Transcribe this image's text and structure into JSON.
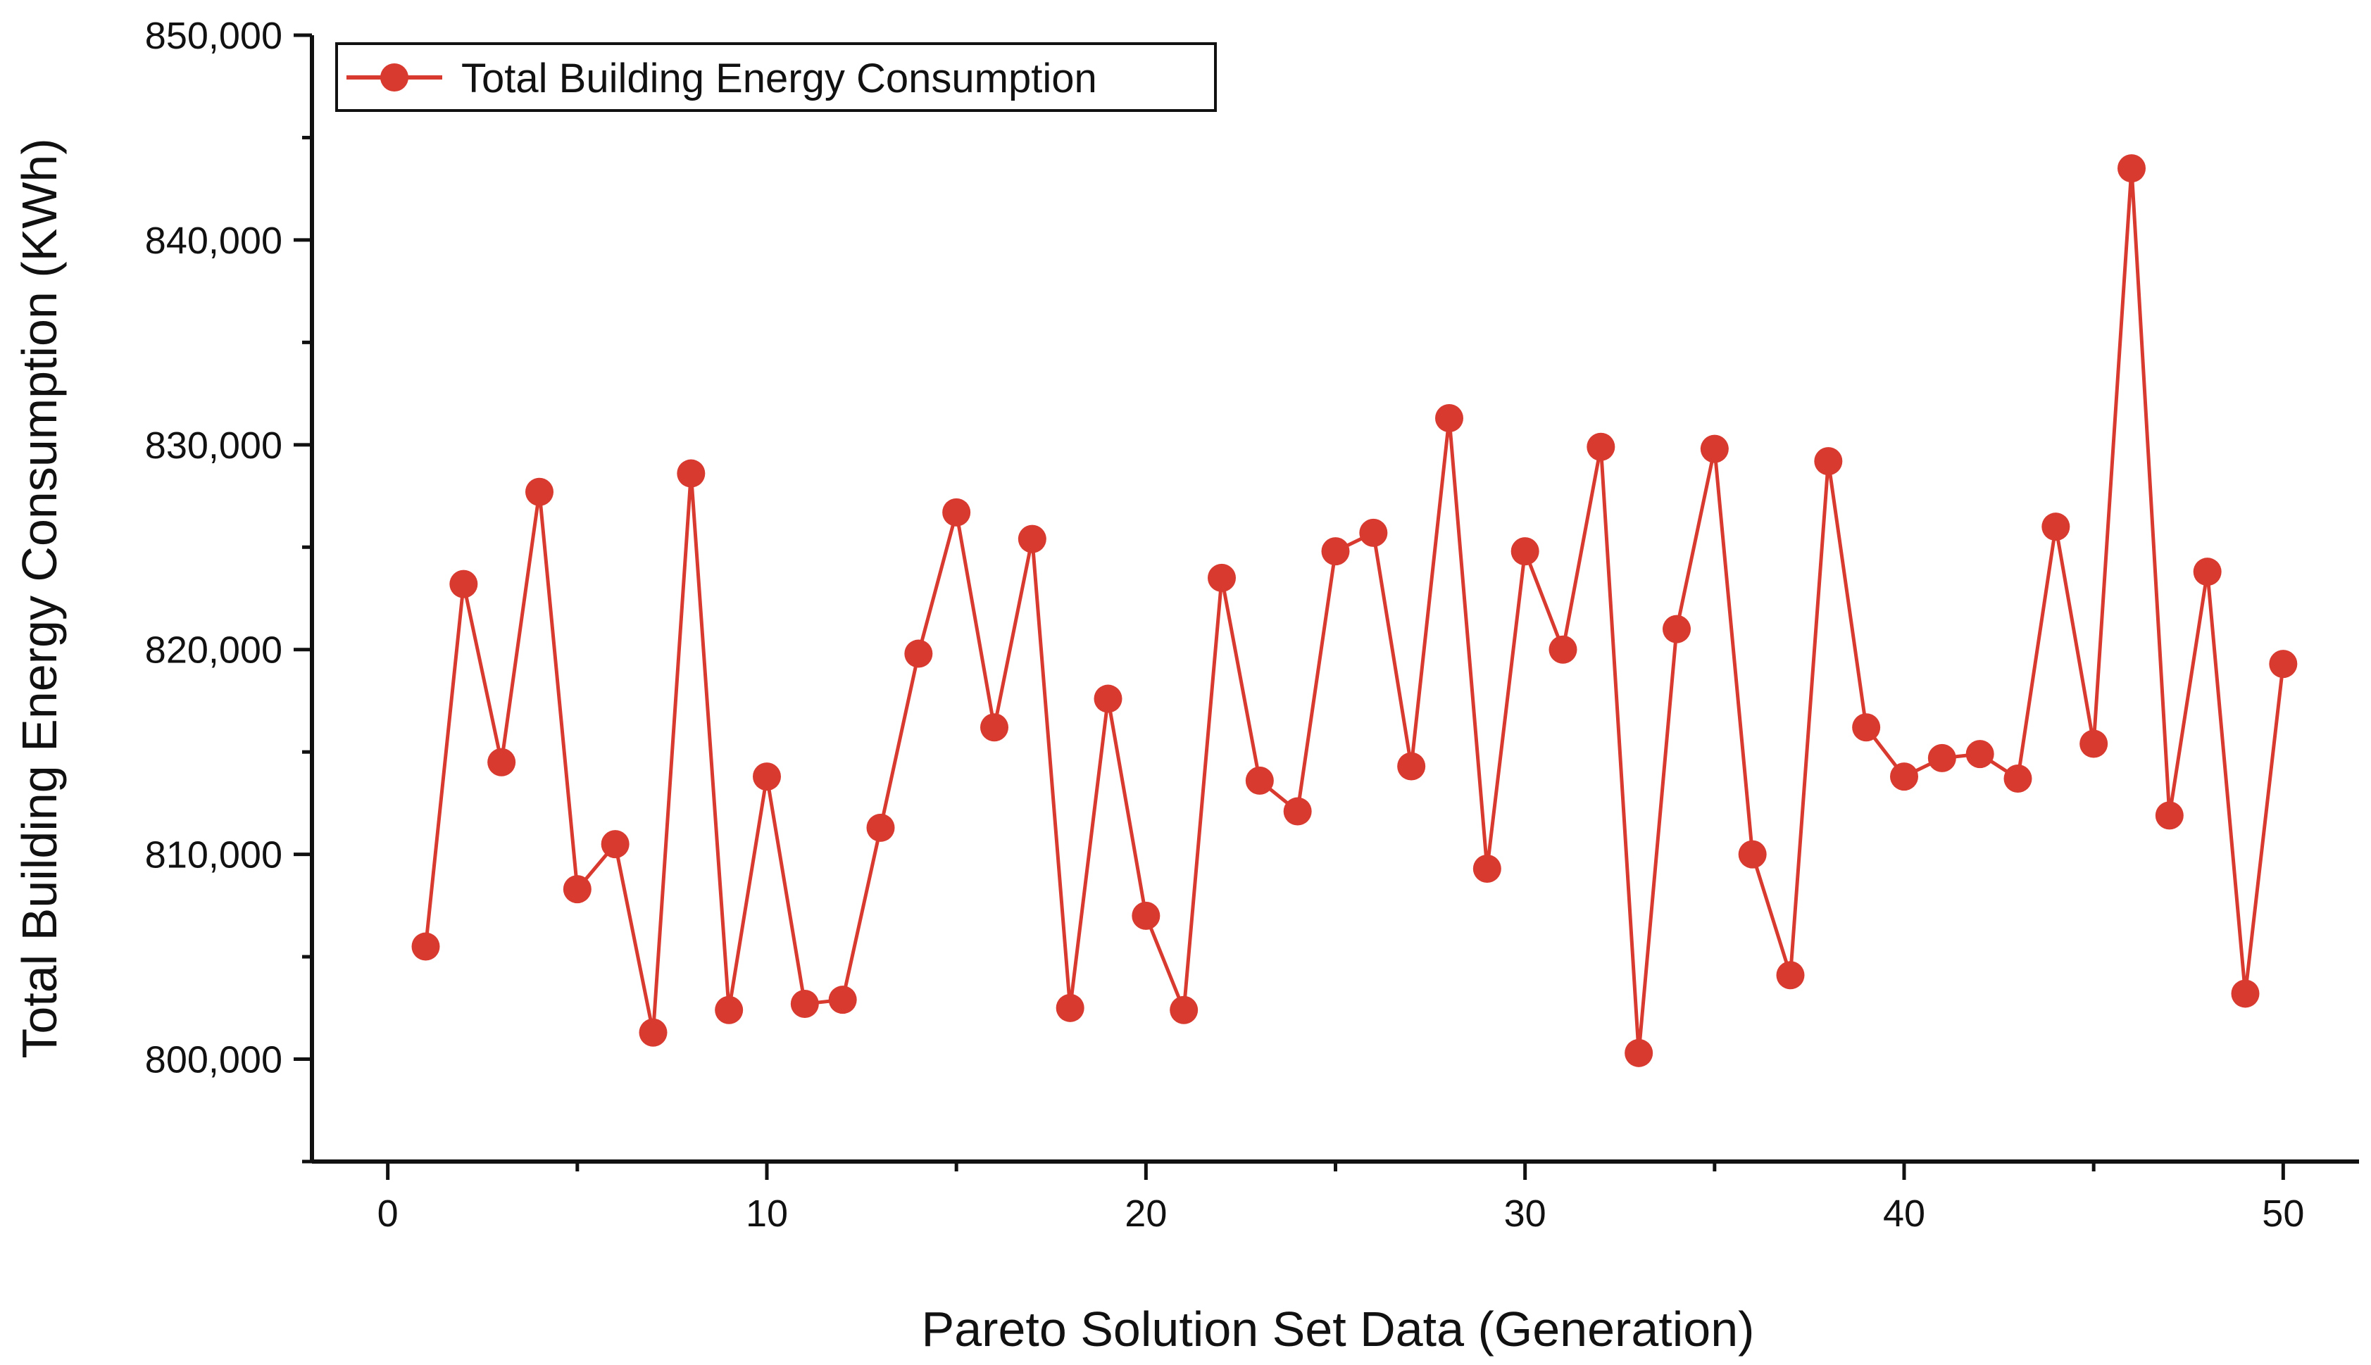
{
  "chart_data": {
    "type": "line",
    "title": "",
    "xlabel": "Pareto Solution Set Data (Generation)",
    "ylabel": "Total Building Energy Consumption (KWh)",
    "xlim": [
      -2,
      52
    ],
    "ylim": [
      795000,
      850000
    ],
    "x_ticks": [
      0,
      10,
      20,
      30,
      40,
      50
    ],
    "x_tick_labels": [
      "0",
      "10",
      "20",
      "30",
      "40",
      "50"
    ],
    "y_ticks": [
      800000,
      810000,
      820000,
      830000,
      840000,
      850000
    ],
    "y_tick_labels": [
      "800,000",
      "810,000",
      "820,000",
      "830,000",
      "840,000",
      "850,000"
    ],
    "grid": false,
    "legend_position": "top-left",
    "series": [
      {
        "name": "Total Building Energy Consumption",
        "color": "#d93a2f",
        "x": [
          1,
          2,
          3,
          4,
          5,
          6,
          7,
          8,
          9,
          10,
          11,
          12,
          13,
          14,
          15,
          16,
          17,
          18,
          19,
          20,
          21,
          22,
          23,
          24,
          25,
          26,
          27,
          28,
          29,
          30,
          31,
          32,
          33,
          34,
          35,
          36,
          37,
          38,
          39,
          40,
          41,
          42,
          43,
          44,
          45,
          46,
          47,
          48,
          49,
          50
        ],
        "values": [
          805500,
          823200,
          814500,
          827700,
          808300,
          810500,
          801300,
          828600,
          802400,
          813800,
          802700,
          802900,
          811300,
          819800,
          826700,
          816200,
          825400,
          802500,
          817600,
          807000,
          802400,
          823500,
          813600,
          812100,
          824800,
          825700,
          814300,
          831300,
          809300,
          824800,
          820000,
          829900,
          800300,
          821000,
          829800,
          810000,
          804100,
          829200,
          816200,
          813800,
          814700,
          814900,
          813700,
          826000,
          815400,
          843500,
          811900,
          823800,
          803200,
          819300
        ]
      }
    ]
  }
}
